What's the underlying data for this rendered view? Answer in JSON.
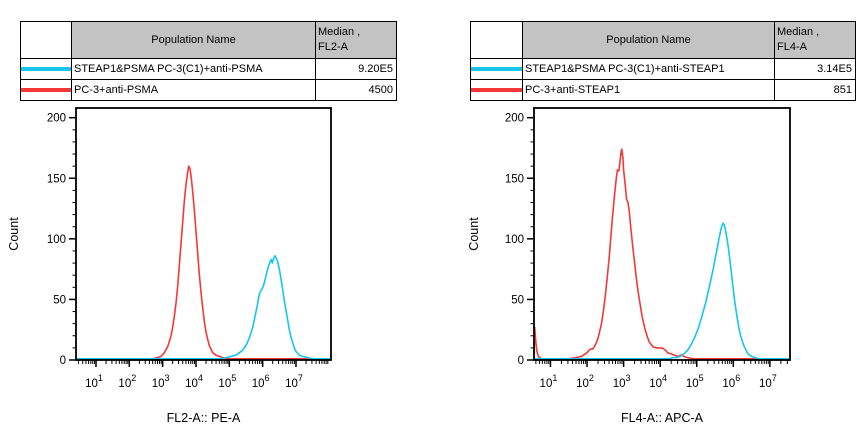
{
  "figure": {
    "background": "#ffffff",
    "accent_cyan": "#15C5F0",
    "accent_red": "#F43737",
    "table_header_gray": "#C3C3C3"
  },
  "tables": [
    {
      "population_header": "Population Name",
      "median_header_line1": "Median ,",
      "median_header_line2": "FL2-A",
      "rows": [
        {
          "swatch_color": "#15C5F0",
          "population": "STEAP1&PSMA PC-3(C1)+anti-PSMA",
          "median": "9.20E5"
        },
        {
          "swatch_color": "#F43737",
          "population": "PC-3+anti-PSMA",
          "median": "4500"
        }
      ]
    },
    {
      "population_header": "Population Name",
      "median_header_line1": "Median ,",
      "median_header_line2": "FL4-A",
      "rows": [
        {
          "swatch_color": "#15C5F0",
          "population": "STEAP1&PSMA PC-3(C1)+anti-STEAP1",
          "median": "3.14E5"
        },
        {
          "swatch_color": "#F43737",
          "population": "PC-3+anti-STEAP1",
          "median": "851"
        }
      ]
    }
  ],
  "chart_data": [
    {
      "type": "line",
      "subtype": "flow-cytometry-histogram-overlay",
      "title": "",
      "xlabel": "FL2-A:: PE-A",
      "ylabel": "Count",
      "xscale": "log10",
      "xlim_log10": [
        0.4,
        8.05
      ],
      "ylim": [
        0,
        208
      ],
      "x_tick_exponents": [
        1,
        2,
        3,
        4,
        5,
        6,
        7
      ],
      "y_ticks": [
        0,
        50,
        100,
        150,
        200
      ],
      "y_minor_step": 10,
      "grid": false,
      "legend_position": "table-above",
      "series": [
        {
          "name": "PC-3+anti-PSMA",
          "color": "#F43737",
          "median": "4500",
          "peak_count": 160,
          "points_log10x_count": [
            [
              0.4,
              1
            ],
            [
              2.7,
              1
            ],
            [
              2.85,
              2
            ],
            [
              2.95,
              3
            ],
            [
              3.05,
              6
            ],
            [
              3.15,
              11
            ],
            [
              3.25,
              20
            ],
            [
              3.3,
              27
            ],
            [
              3.35,
              36
            ],
            [
              3.4,
              47
            ],
            [
              3.45,
              61
            ],
            [
              3.5,
              78
            ],
            [
              3.55,
              96
            ],
            [
              3.6,
              114
            ],
            [
              3.65,
              131
            ],
            [
              3.7,
              145
            ],
            [
              3.75,
              155
            ],
            [
              3.78,
              160
            ],
            [
              3.82,
              158
            ],
            [
              3.86,
              150
            ],
            [
              3.9,
              139
            ],
            [
              3.95,
              124
            ],
            [
              4.0,
              106
            ],
            [
              4.05,
              88
            ],
            [
              4.1,
              71
            ],
            [
              4.15,
              56
            ],
            [
              4.2,
              43
            ],
            [
              4.25,
              32
            ],
            [
              4.3,
              23
            ],
            [
              4.35,
              17
            ],
            [
              4.4,
              12
            ],
            [
              4.45,
              9
            ],
            [
              4.5,
              6
            ],
            [
              4.6,
              4
            ],
            [
              4.7,
              3
            ],
            [
              4.8,
              2
            ],
            [
              4.95,
              1
            ],
            [
              8.05,
              1
            ]
          ]
        },
        {
          "name": "STEAP1&PSMA PC-3(C1)+anti-PSMA",
          "color": "#15C5F0",
          "median": "9.20E5",
          "peak_count": 86,
          "points_log10x_count": [
            [
              0.4,
              1
            ],
            [
              4.75,
              1
            ],
            [
              4.9,
              2
            ],
            [
              5.05,
              3
            ],
            [
              5.2,
              4
            ],
            [
              5.3,
              6
            ],
            [
              5.4,
              8
            ],
            [
              5.5,
              12
            ],
            [
              5.6,
              18
            ],
            [
              5.7,
              27
            ],
            [
              5.78,
              37
            ],
            [
              5.84,
              45
            ],
            [
              5.88,
              52
            ],
            [
              5.92,
              56
            ],
            [
              5.97,
              58
            ],
            [
              6.02,
              61
            ],
            [
              6.07,
              66
            ],
            [
              6.12,
              72
            ],
            [
              6.17,
              77
            ],
            [
              6.22,
              81
            ],
            [
              6.26,
              83
            ],
            [
              6.29,
              80
            ],
            [
              6.33,
              84
            ],
            [
              6.37,
              86
            ],
            [
              6.41,
              84
            ],
            [
              6.45,
              81
            ],
            [
              6.5,
              75
            ],
            [
              6.55,
              67
            ],
            [
              6.6,
              58
            ],
            [
              6.65,
              49
            ],
            [
              6.7,
              41
            ],
            [
              6.75,
              33
            ],
            [
              6.8,
              25
            ],
            [
              6.85,
              19
            ],
            [
              6.9,
              14
            ],
            [
              6.95,
              10
            ],
            [
              7.0,
              7
            ],
            [
              7.1,
              4
            ],
            [
              7.2,
              3
            ],
            [
              7.35,
              2
            ],
            [
              7.5,
              1
            ],
            [
              8.05,
              1
            ]
          ]
        }
      ]
    },
    {
      "type": "line",
      "subtype": "flow-cytometry-histogram-overlay",
      "title": "",
      "xlabel": "FL4-A:: APC-A",
      "ylabel": "Count",
      "xscale": "log10",
      "xlim_log10": [
        0.55,
        7.55
      ],
      "ylim": [
        0,
        208
      ],
      "x_tick_exponents": [
        1,
        2,
        3,
        4,
        5,
        6,
        7
      ],
      "y_ticks": [
        0,
        50,
        100,
        150,
        200
      ],
      "y_minor_step": 10,
      "grid": false,
      "legend_position": "table-above",
      "series": [
        {
          "name": "PC-3+anti-STEAP1",
          "color": "#F43737",
          "median": "851",
          "peak_count": 174,
          "points_log10x_count": [
            [
              0.55,
              2
            ],
            [
              0.57,
              27
            ],
            [
              0.6,
              15
            ],
            [
              0.63,
              7
            ],
            [
              0.67,
              3
            ],
            [
              0.75,
              1
            ],
            [
              1.5,
              1
            ],
            [
              1.7,
              2
            ],
            [
              1.85,
              3
            ],
            [
              1.95,
              5
            ],
            [
              2.0,
              6
            ],
            [
              2.05,
              8
            ],
            [
              2.1,
              9
            ],
            [
              2.15,
              9
            ],
            [
              2.2,
              11
            ],
            [
              2.25,
              14
            ],
            [
              2.3,
              18
            ],
            [
              2.35,
              24
            ],
            [
              2.4,
              31
            ],
            [
              2.45,
              41
            ],
            [
              2.5,
              53
            ],
            [
              2.55,
              67
            ],
            [
              2.6,
              83
            ],
            [
              2.65,
              101
            ],
            [
              2.7,
              119
            ],
            [
              2.75,
              136
            ],
            [
              2.8,
              150
            ],
            [
              2.83,
              157
            ],
            [
              2.87,
              156
            ],
            [
              2.9,
              163
            ],
            [
              2.93,
              171
            ],
            [
              2.95,
              174
            ],
            [
              2.98,
              167
            ],
            [
              3.0,
              157
            ],
            [
              3.05,
              143
            ],
            [
              3.08,
              133
            ],
            [
              3.12,
              130
            ],
            [
              3.16,
              121
            ],
            [
              3.2,
              108
            ],
            [
              3.25,
              94
            ],
            [
              3.3,
              80
            ],
            [
              3.35,
              67
            ],
            [
              3.4,
              56
            ],
            [
              3.45,
              46
            ],
            [
              3.5,
              37
            ],
            [
              3.55,
              30
            ],
            [
              3.6,
              24
            ],
            [
              3.65,
              19
            ],
            [
              3.7,
              15
            ],
            [
              3.75,
              13
            ],
            [
              3.8,
              11
            ],
            [
              3.9,
              10
            ],
            [
              4.0,
              10
            ],
            [
              4.05,
              10
            ],
            [
              4.1,
              9
            ],
            [
              4.15,
              8
            ],
            [
              4.2,
              6
            ],
            [
              4.3,
              5
            ],
            [
              4.4,
              4
            ],
            [
              4.5,
              3
            ],
            [
              4.55,
              4
            ],
            [
              4.6,
              4
            ],
            [
              4.65,
              3
            ],
            [
              4.75,
              2
            ],
            [
              4.9,
              1
            ],
            [
              7.55,
              1
            ]
          ]
        },
        {
          "name": "STEAP1&PSMA PC-3(C1)+anti-STEAP1",
          "color": "#15C5F0",
          "median": "3.14E5",
          "peak_count": 113,
          "points_log10x_count": [
            [
              0.55,
              1
            ],
            [
              4.25,
              1
            ],
            [
              4.35,
              2
            ],
            [
              4.45,
              2
            ],
            [
              4.55,
              3
            ],
            [
              4.65,
              5
            ],
            [
              4.75,
              8
            ],
            [
              4.85,
              13
            ],
            [
              4.95,
              19
            ],
            [
              5.05,
              27
            ],
            [
              5.15,
              37
            ],
            [
              5.25,
              48
            ],
            [
              5.35,
              61
            ],
            [
              5.45,
              75
            ],
            [
              5.5,
              83
            ],
            [
              5.55,
              91
            ],
            [
              5.6,
              99
            ],
            [
              5.65,
              106
            ],
            [
              5.68,
              110
            ],
            [
              5.72,
              113
            ],
            [
              5.76,
              111
            ],
            [
              5.8,
              105
            ],
            [
              5.85,
              96
            ],
            [
              5.9,
              84
            ],
            [
              5.95,
              71
            ],
            [
              6.0,
              58
            ],
            [
              6.05,
              46
            ],
            [
              6.1,
              36
            ],
            [
              6.15,
              27
            ],
            [
              6.2,
              20
            ],
            [
              6.25,
              15
            ],
            [
              6.3,
              11
            ],
            [
              6.35,
              8
            ],
            [
              6.4,
              5
            ],
            [
              6.45,
              4
            ],
            [
              6.5,
              3
            ],
            [
              6.6,
              2
            ],
            [
              6.7,
              1
            ],
            [
              7.55,
              1
            ]
          ]
        }
      ]
    }
  ]
}
